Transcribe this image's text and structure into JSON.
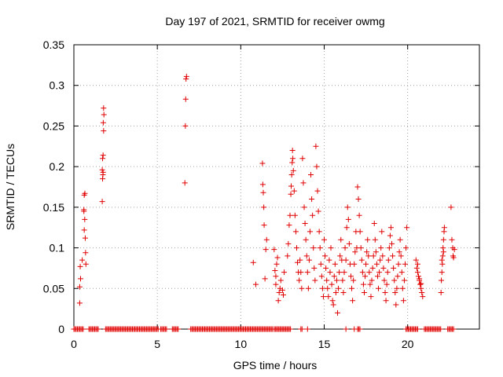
{
  "chart_data": {
    "type": "scatter",
    "title": "Day 197 of 2021, SRMTID for receiver owmg",
    "xlabel": "GPS time / hours",
    "ylabel": "SRMTID / TECUs",
    "xlim": [
      0,
      24.3
    ],
    "ylim": [
      0,
      0.35
    ],
    "x_ticks": [
      0,
      5,
      10,
      15,
      20
    ],
    "x_tick_labels": [
      "0",
      "5",
      "10",
      "15",
      "20"
    ],
    "y_ticks": [
      0,
      0.05,
      0.1,
      0.15,
      0.2,
      0.25,
      0.3,
      0.35
    ],
    "y_tick_labels": [
      "0",
      "0.05",
      "0.1",
      "0.15",
      "0.2",
      "0.25",
      "0.3",
      "0.35"
    ],
    "grid": true,
    "marker": "+",
    "color": "#e00000",
    "series": [
      {
        "name": "SRMTID",
        "points": [
          [
            0.35,
            0.032
          ],
          [
            0.35,
            0.052
          ],
          [
            0.38,
            0.077
          ],
          [
            0.4,
            0.062
          ],
          [
            0.5,
            0.085
          ],
          [
            0.6,
            0.145
          ],
          [
            0.62,
            0.165
          ],
          [
            0.65,
            0.135
          ],
          [
            0.68,
            0.112
          ],
          [
            0.7,
            0.094
          ],
          [
            0.72,
            0.08
          ],
          [
            0.62,
            0.122
          ],
          [
            0.66,
            0.167
          ],
          [
            0.6,
            0.147
          ],
          [
            1.7,
            0.157
          ],
          [
            1.72,
            0.185
          ],
          [
            1.75,
            0.193
          ],
          [
            1.72,
            0.21
          ],
          [
            1.75,
            0.214
          ],
          [
            1.78,
            0.244
          ],
          [
            1.76,
            0.254
          ],
          [
            1.8,
            0.264
          ],
          [
            1.78,
            0.272
          ],
          [
            1.7,
            0.196
          ],
          [
            1.74,
            0.19
          ],
          [
            6.65,
            0.18
          ],
          [
            6.68,
            0.25
          ],
          [
            6.7,
            0.283
          ],
          [
            6.72,
            0.308
          ],
          [
            6.75,
            0.311
          ],
          [
            10.75,
            0.082
          ],
          [
            10.9,
            0.055
          ],
          [
            11.3,
            0.204
          ],
          [
            11.32,
            0.178
          ],
          [
            11.35,
            0.168
          ],
          [
            11.38,
            0.15
          ],
          [
            11.4,
            0.128
          ],
          [
            11.45,
            0.062
          ],
          [
            11.5,
            0.098
          ],
          [
            11.55,
            0.11
          ],
          [
            12.0,
            0.098
          ],
          [
            12.05,
            0.072
          ],
          [
            12.1,
            0.055
          ],
          [
            12.1,
            0.065
          ],
          [
            12.15,
            0.08
          ],
          [
            12.2,
            0.088
          ],
          [
            12.25,
            0.035
          ],
          [
            12.3,
            0.045
          ],
          [
            12.35,
            0.05
          ],
          [
            12.4,
            0.06
          ],
          [
            12.5,
            0.048
          ],
          [
            12.55,
            0.042
          ],
          [
            12.6,
            0.07
          ],
          [
            12.8,
            0.09
          ],
          [
            12.85,
            0.105
          ],
          [
            12.9,
            0.128
          ],
          [
            12.95,
            0.14
          ],
          [
            13.0,
            0.166
          ],
          [
            13.02,
            0.176
          ],
          [
            13.05,
            0.19
          ],
          [
            13.08,
            0.205
          ],
          [
            13.1,
            0.22
          ],
          [
            13.12,
            0.21
          ],
          [
            13.15,
            0.195
          ],
          [
            13.2,
            0.17
          ],
          [
            13.25,
            0.14
          ],
          [
            13.3,
            0.12
          ],
          [
            13.35,
            0.1
          ],
          [
            13.4,
            0.082
          ],
          [
            13.45,
            0.07
          ],
          [
            13.5,
            0.06
          ],
          [
            13.55,
            0.085
          ],
          [
            13.6,
            0.07
          ],
          [
            13.65,
            0.05
          ],
          [
            13.7,
            0.21
          ],
          [
            13.75,
            0.18
          ],
          [
            13.8,
            0.15
          ],
          [
            13.85,
            0.13
          ],
          [
            13.9,
            0.11
          ],
          [
            13.95,
            0.09
          ],
          [
            14.0,
            0.07
          ],
          [
            14.05,
            0.05
          ],
          [
            14.1,
            0.085
          ],
          [
            14.15,
            0.12
          ],
          [
            14.2,
            0.19
          ],
          [
            14.25,
            0.16
          ],
          [
            14.3,
            0.14
          ],
          [
            14.35,
            0.1
          ],
          [
            14.4,
            0.075
          ],
          [
            14.45,
            0.06
          ],
          [
            14.5,
            0.225
          ],
          [
            14.55,
            0.2
          ],
          [
            14.6,
            0.17
          ],
          [
            14.65,
            0.145
          ],
          [
            14.7,
            0.12
          ],
          [
            14.75,
            0.1
          ],
          [
            14.8,
            0.08
          ],
          [
            14.85,
            0.065
          ],
          [
            14.9,
            0.05
          ],
          [
            14.95,
            0.04
          ],
          [
            15.0,
            0.11
          ],
          [
            15.05,
            0.09
          ],
          [
            15.1,
            0.075
          ],
          [
            15.15,
            0.06
          ],
          [
            15.2,
            0.05
          ],
          [
            15.25,
            0.04
          ],
          [
            15.3,
            0.085
          ],
          [
            15.35,
            0.07
          ],
          [
            15.4,
            0.1
          ],
          [
            15.45,
            0.055
          ],
          [
            15.5,
            0.035
          ],
          [
            15.55,
            0.03
          ],
          [
            15.6,
            0.065
          ],
          [
            15.65,
            0.08
          ],
          [
            15.7,
            0.045
          ],
          [
            15.75,
            0.06
          ],
          [
            15.8,
            0.02
          ],
          [
            15.85,
            0.05
          ],
          [
            15.9,
            0.07
          ],
          [
            15.95,
            0.09
          ],
          [
            16.0,
            0.11
          ],
          [
            16.05,
            0.085
          ],
          [
            16.1,
            0.06
          ],
          [
            16.15,
            0.045
          ],
          [
            16.2,
            0.07
          ],
          [
            16.25,
            0.1
          ],
          [
            16.3,
            0.085
          ],
          [
            16.35,
            0.125
          ],
          [
            16.4,
            0.15
          ],
          [
            16.45,
            0.135
          ],
          [
            16.5,
            0.105
          ],
          [
            16.55,
            0.08
          ],
          [
            16.6,
            0.065
          ],
          [
            16.65,
            0.05
          ],
          [
            16.7,
            0.035
          ],
          [
            16.75,
            0.06
          ],
          [
            16.8,
            0.08
          ],
          [
            16.85,
            0.095
          ],
          [
            16.9,
            0.12
          ],
          [
            16.95,
            0.1
          ],
          [
            17.0,
            0.175
          ],
          [
            17.05,
            0.16
          ],
          [
            17.1,
            0.14
          ],
          [
            17.15,
            0.12
          ],
          [
            17.2,
            0.1
          ],
          [
            17.25,
            0.085
          ],
          [
            17.3,
            0.07
          ],
          [
            17.35,
            0.055
          ],
          [
            17.4,
            0.045
          ],
          [
            17.45,
            0.065
          ],
          [
            17.5,
            0.08
          ],
          [
            17.55,
            0.095
          ],
          [
            17.6,
            0.11
          ],
          [
            17.65,
            0.09
          ],
          [
            17.7,
            0.07
          ],
          [
            17.75,
            0.055
          ],
          [
            17.8,
            0.04
          ],
          [
            17.85,
            0.06
          ],
          [
            17.9,
            0.075
          ],
          [
            17.95,
            0.09
          ],
          [
            18.0,
            0.13
          ],
          [
            18.05,
            0.11
          ],
          [
            18.1,
            0.095
          ],
          [
            18.15,
            0.08
          ],
          [
            18.2,
            0.065
          ],
          [
            18.25,
            0.05
          ],
          [
            18.3,
            0.07
          ],
          [
            18.35,
            0.085
          ],
          [
            18.4,
            0.1
          ],
          [
            18.45,
            0.12
          ],
          [
            18.5,
            0.09
          ],
          [
            18.55,
            0.075
          ],
          [
            18.6,
            0.06
          ],
          [
            18.65,
            0.045
          ],
          [
            18.7,
            0.035
          ],
          [
            18.75,
            0.055
          ],
          [
            18.8,
            0.07
          ],
          [
            18.85,
            0.085
          ],
          [
            18.9,
            0.1
          ],
          [
            18.95,
            0.115
          ],
          [
            19.0,
            0.125
          ],
          [
            19.05,
            0.105
          ],
          [
            19.1,
            0.09
          ],
          [
            19.15,
            0.075
          ],
          [
            19.2,
            0.06
          ],
          [
            19.25,
            0.045
          ],
          [
            19.3,
            0.03
          ],
          [
            19.35,
            0.05
          ],
          [
            19.4,
            0.065
          ],
          [
            19.45,
            0.08
          ],
          [
            19.5,
            0.095
          ],
          [
            19.55,
            0.11
          ],
          [
            19.6,
            0.09
          ],
          [
            19.65,
            0.07
          ],
          [
            19.7,
            0.05
          ],
          [
            19.75,
            0.035
          ],
          [
            19.8,
            0.06
          ],
          [
            19.85,
            0.08
          ],
          [
            19.9,
            0.1
          ],
          [
            19.95,
            0.125
          ],
          [
            20.5,
            0.085
          ],
          [
            20.55,
            0.075
          ],
          [
            20.6,
            0.07
          ],
          [
            20.65,
            0.065
          ],
          [
            20.7,
            0.06
          ],
          [
            20.75,
            0.055
          ],
          [
            20.8,
            0.05
          ],
          [
            20.85,
            0.045
          ],
          [
            20.9,
            0.04
          ],
          [
            20.6,
            0.08
          ],
          [
            20.7,
            0.062
          ],
          [
            20.8,
            0.056
          ],
          [
            22.0,
            0.045
          ],
          [
            22.02,
            0.06
          ],
          [
            22.05,
            0.07
          ],
          [
            22.08,
            0.08
          ],
          [
            22.1,
            0.09
          ],
          [
            22.12,
            0.1
          ],
          [
            22.15,
            0.11
          ],
          [
            22.18,
            0.12
          ],
          [
            22.2,
            0.125
          ],
          [
            22.05,
            0.085
          ],
          [
            22.15,
            0.095
          ],
          [
            22.6,
            0.15
          ],
          [
            22.65,
            0.11
          ],
          [
            22.7,
            0.1
          ],
          [
            22.72,
            0.09
          ],
          [
            22.75,
            0.088
          ],
          [
            22.8,
            0.098
          ]
        ]
      }
    ],
    "zero_segments": [
      [
        0.0,
        0.6
      ],
      [
        0.9,
        1.5
      ],
      [
        1.9,
        5.1
      ],
      [
        5.2,
        5.6
      ],
      [
        5.9,
        6.3
      ],
      [
        7.0,
        11.9
      ],
      [
        12.0,
        13.0
      ],
      [
        13.6,
        13.7
      ],
      [
        14.0,
        14.05
      ],
      [
        16.3,
        16.35
      ],
      [
        16.8,
        16.85
      ],
      [
        17.0,
        17.2
      ],
      [
        19.9,
        20.6
      ],
      [
        21.0,
        22.0
      ],
      [
        22.4,
        22.8
      ]
    ]
  }
}
